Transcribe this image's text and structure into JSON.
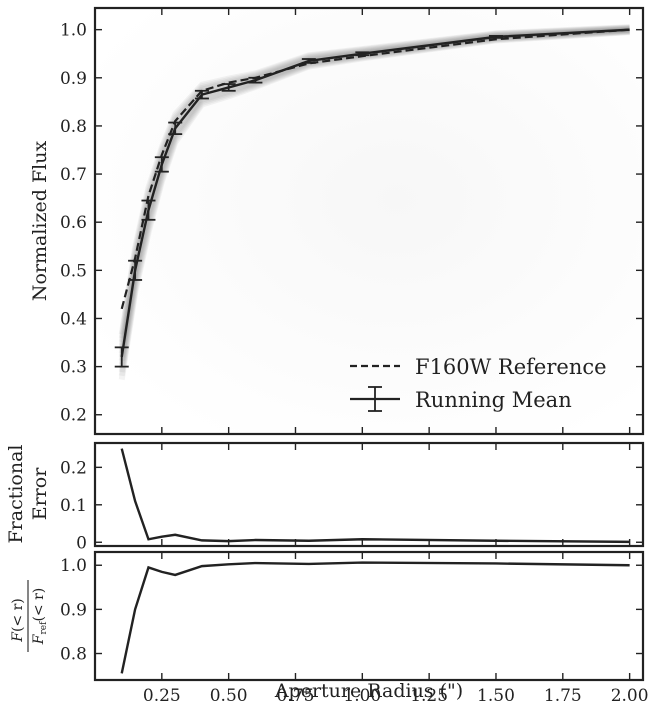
{
  "chart_data": [
    {
      "panel": "top",
      "type": "line",
      "ylabel": "Normalized Flux",
      "xlim": [
        0.0,
        2.05
      ],
      "ylim": [
        0.16,
        1.045
      ],
      "yticks": [
        "0.2",
        "0.3",
        "0.4",
        "0.5",
        "0.6",
        "0.7",
        "0.8",
        "0.9",
        "1.0"
      ],
      "series": [
        {
          "name": "F160W Reference",
          "style": "dashed",
          "x": [
            0.1,
            0.15,
            0.2,
            0.25,
            0.3,
            0.4,
            0.5,
            0.6,
            0.8,
            1.0,
            1.5,
            2.0
          ],
          "y": [
            0.42,
            0.525,
            0.655,
            0.74,
            0.81,
            0.873,
            0.89,
            0.9,
            0.93,
            0.945,
            0.98,
            1.0
          ]
        },
        {
          "name": "Running Mean",
          "style": "solid-errorbars",
          "x": [
            0.1,
            0.15,
            0.2,
            0.25,
            0.3,
            0.4,
            0.5,
            0.6,
            0.8,
            1.0,
            1.5,
            2.0
          ],
          "y": [
            0.32,
            0.5,
            0.625,
            0.72,
            0.795,
            0.865,
            0.88,
            0.895,
            0.935,
            0.95,
            0.985,
            1.0
          ],
          "err": [
            0.02,
            0.02,
            0.02,
            0.015,
            0.012,
            0.008,
            0.007,
            0.005,
            0.004,
            0.003,
            0.002,
            0.0
          ]
        }
      ],
      "legend": "lower-right"
    },
    {
      "panel": "middle",
      "type": "line",
      "ylabel_lines": [
        "Fractional",
        "Error"
      ],
      "xlim": [
        0.0,
        2.05
      ],
      "ylim": [
        -0.01,
        0.265
      ],
      "yticks": [
        "0",
        "0.1",
        "0.2"
      ],
      "series": [
        {
          "x": [
            0.1,
            0.15,
            0.2,
            0.25,
            0.3,
            0.4,
            0.5,
            0.6,
            0.8,
            1.0,
            1.5,
            2.0
          ],
          "y": [
            0.25,
            0.11,
            0.008,
            0.015,
            0.02,
            0.005,
            0.003,
            0.006,
            0.004,
            0.008,
            0.004,
            0.001
          ]
        }
      ]
    },
    {
      "panel": "bottom",
      "type": "line",
      "ylabel_math": {
        "num_F": "F",
        "num_arg": "(< r)",
        "den_F": "F",
        "den_sub": "ref",
        "den_arg": "(< r)"
      },
      "xlim": [
        0.0,
        2.05
      ],
      "ylim": [
        0.74,
        1.03
      ],
      "yticks": [
        "0.8",
        "0.9",
        "1.0"
      ],
      "xticks": [
        "0.25",
        "0.50",
        "0.75",
        "1.00",
        "1.25",
        "1.50",
        "1.75",
        "2.00"
      ],
      "xlabel": "Aperture Radius (\")",
      "series": [
        {
          "x": [
            0.1,
            0.15,
            0.2,
            0.25,
            0.3,
            0.4,
            0.5,
            0.6,
            0.8,
            1.0,
            1.5,
            2.0
          ],
          "y": [
            0.755,
            0.9,
            0.995,
            0.985,
            0.978,
            0.998,
            1.002,
            1.005,
            1.003,
            1.006,
            1.004,
            1.0
          ]
        }
      ]
    }
  ]
}
